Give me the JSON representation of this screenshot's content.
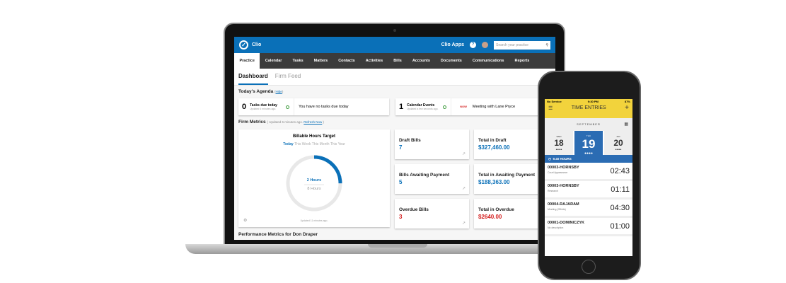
{
  "app": {
    "name": "Clio",
    "apps_label": "Clio Apps",
    "search_placeholder": "Search your practice"
  },
  "nav": [
    "Practice",
    "Calendar",
    "Tasks",
    "Matters",
    "Contacts",
    "Activities",
    "Bills",
    "Accounts",
    "Documents",
    "Communications",
    "Reports"
  ],
  "tabs": [
    "Dashboard",
    "Firm Feed"
  ],
  "agenda": {
    "title": "Today's Agenda",
    "hide": "Hide",
    "tasks": {
      "count": "0",
      "label": "Tasks due today",
      "updated": "Updated 6 minutes ago.",
      "message": "You have no tasks due today"
    },
    "events": {
      "count": "1",
      "label": "Calendar Events",
      "updated": "Updated a few seconds ago.",
      "badge": "NOW",
      "message": "Meeting with Lane Pryce"
    }
  },
  "metrics": {
    "title": "Firm Metrics",
    "updated": "Updated 6 minutes ago.",
    "refresh": "Refresh Now",
    "billable": {
      "title": "Billable Hours Target",
      "periods": [
        "Today",
        "This Week",
        "This Month",
        "This Year"
      ],
      "current": "2 Hours",
      "target": "8 Hours",
      "progress": 0.25,
      "updated": "Updated 11 minutes ago."
    },
    "cards": [
      {
        "label": "Draft Bills",
        "value": "7"
      },
      {
        "label": "Total in Draft",
        "value": "$327,460.00"
      },
      {
        "label": "Bills Awaiting Payment",
        "value": "5"
      },
      {
        "label": "Total in Awaiting Payment",
        "value": "$188,363.00"
      },
      {
        "label": "Overdue Bills",
        "value": "3"
      },
      {
        "label": "Total in Overdue",
        "value": "$2640.00"
      }
    ]
  },
  "performance_title": "Performance Metrics for Don Draper",
  "phone": {
    "carrier": "No Service",
    "time": "9:30 PM",
    "battery": "87%",
    "title": "TIME ENTRIES",
    "month": "SEPTEMBER",
    "days": [
      {
        "dow": "WED",
        "num": "18"
      },
      {
        "dow": "THU",
        "num": "19"
      },
      {
        "dow": "FRI",
        "num": "20"
      }
    ],
    "hours": "9.40 HOURS",
    "entries": [
      {
        "code": "00003-HORNSBY",
        "desc": "Court Appearance",
        "time": "02:43"
      },
      {
        "code": "00003-HORNSBY",
        "desc": "Research",
        "time": "01:11"
      },
      {
        "code": "00004-RAJARAM",
        "desc": "Meeting (Offsite)",
        "time": "04:30"
      },
      {
        "code": "00001-DOMINICZYK",
        "desc": "No description",
        "time": "01:00"
      }
    ]
  },
  "colors": {
    "brand": "#0a70b8",
    "nav": "#3b3b3b",
    "phone_header": "#f2d33c",
    "overdue": "#d42020"
  }
}
